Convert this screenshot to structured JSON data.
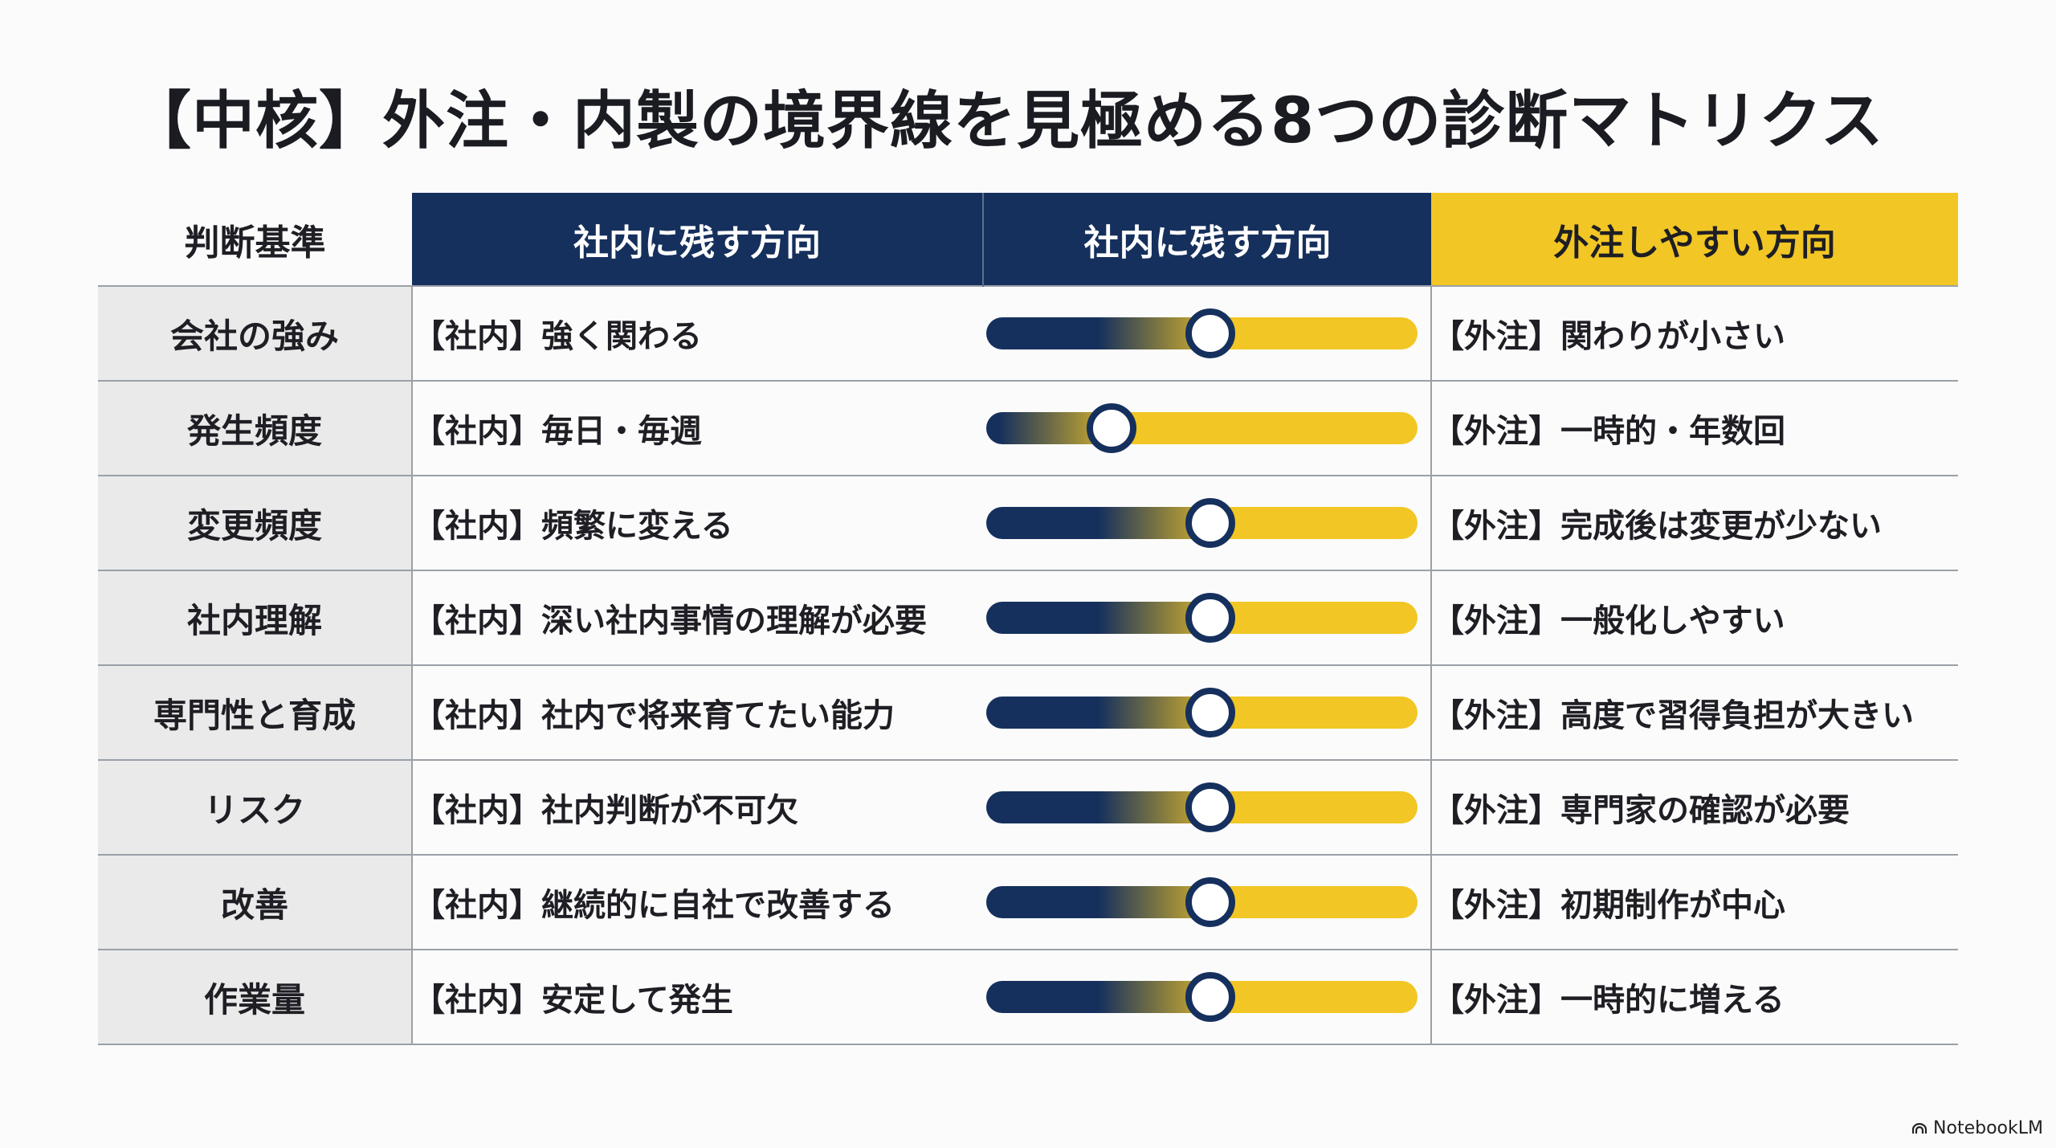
{
  "title": "【中核】外注・内製の境界線を見極める8つの診断マトリクス",
  "header": {
    "criteria": "判断基準",
    "inhouse": "社内に残す方向",
    "scale": "社内に残す方向",
    "outsource": "外注しやすい方向"
  },
  "colors": {
    "navy": "#16305d",
    "yellow": "#f2c624"
  },
  "rows": [
    {
      "criterion": "会社の強み",
      "inhouse": "【社内】強く関わる",
      "outsource": "【外注】関わりが小さい",
      "level": 0.52
    },
    {
      "criterion": "発生頻度",
      "inhouse": "【社内】毎日・毎週",
      "outsource": "【外注】一時的・年数回",
      "level": 0.29
    },
    {
      "criterion": "変更頻度",
      "inhouse": "【社内】頻繁に変える",
      "outsource": "【外注】完成後は変更が少ない",
      "level": 0.52
    },
    {
      "criterion": "社内理解",
      "inhouse": "【社内】深い社内事情の理解が必要",
      "outsource": "【外注】一般化しやすい",
      "level": 0.52
    },
    {
      "criterion": "専門性と育成",
      "inhouse": "【社内】社内で将来育てたい能力",
      "outsource": "【外注】高度で習得負担が大きい",
      "level": 0.52
    },
    {
      "criterion": "リスク",
      "inhouse": "【社内】社内判断が不可欠",
      "outsource": "【外注】専門家の確認が必要",
      "level": 0.52
    },
    {
      "criterion": "改善",
      "inhouse": "【社内】継続的に自社で改善する",
      "outsource": "【外注】初期制作が中心",
      "level": 0.52
    },
    {
      "criterion": "作業量",
      "inhouse": "【社内】安定して発生",
      "outsource": "【外注】一時的に増える",
      "level": 0.52
    }
  ],
  "brand": {
    "icon": "notebooklm-icon",
    "label": "NotebookLM"
  }
}
